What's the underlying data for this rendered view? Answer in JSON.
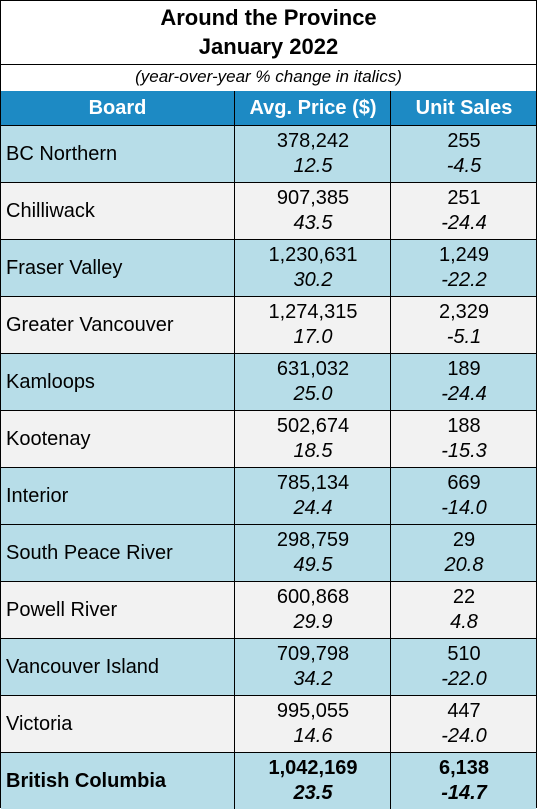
{
  "title": {
    "line1": "Around the Province",
    "line2": "January 2022",
    "subtitle": "(year-over-year % change in italics)"
  },
  "columns": {
    "board": "Board",
    "price": "Avg. Price ($)",
    "units": "Unit Sales"
  },
  "rows": [
    {
      "board": "BC Northern",
      "price": "378,242",
      "price_change": "12.5",
      "units": "255",
      "units_change": "-4.5",
      "shade": "blue"
    },
    {
      "board": "Chilliwack",
      "price": "907,385",
      "price_change": "43.5",
      "units": "251",
      "units_change": "-24.4",
      "shade": "grey"
    },
    {
      "board": "Fraser Valley",
      "price": "1,230,631",
      "price_change": "30.2",
      "units": "1,249",
      "units_change": "-22.2",
      "shade": "blue"
    },
    {
      "board": "Greater Vancouver",
      "price": "1,274,315",
      "price_change": "17.0",
      "units": "2,329",
      "units_change": "-5.1",
      "shade": "grey"
    },
    {
      "board": "Kamloops",
      "price": "631,032",
      "price_change": "25.0",
      "units": "189",
      "units_change": "-24.4",
      "shade": "blue"
    },
    {
      "board": "Kootenay",
      "price": "502,674",
      "price_change": "18.5",
      "units": "188",
      "units_change": "-15.3",
      "shade": "grey"
    },
    {
      "board": "Interior",
      "price": "785,134",
      "price_change": "24.4",
      "units": "669",
      "units_change": "-14.0",
      "shade": "blue"
    },
    {
      "board": "South Peace River",
      "price": "298,759",
      "price_change": "49.5",
      "units": "29",
      "units_change": "20.8",
      "shade": "blue"
    },
    {
      "board": "Powell River",
      "price": "600,868",
      "price_change": "29.9",
      "units": "22",
      "units_change": "4.8",
      "shade": "grey"
    },
    {
      "board": "Vancouver Island",
      "price": "709,798",
      "price_change": "34.2",
      "units": "510",
      "units_change": "-22.0",
      "shade": "blue"
    },
    {
      "board": "Victoria",
      "price": "995,055",
      "price_change": "14.6",
      "units": "447",
      "units_change": "-24.0",
      "shade": "grey"
    },
    {
      "board": "British Columbia",
      "price": "1,042,169",
      "price_change": "23.5",
      "units": "6,138",
      "units_change": "-14.7",
      "shade": "blue",
      "total": true
    }
  ],
  "colors": {
    "header_bg": "#1d8ac4",
    "row_blue": "#b7dde8",
    "row_grey": "#f2f2f2"
  }
}
